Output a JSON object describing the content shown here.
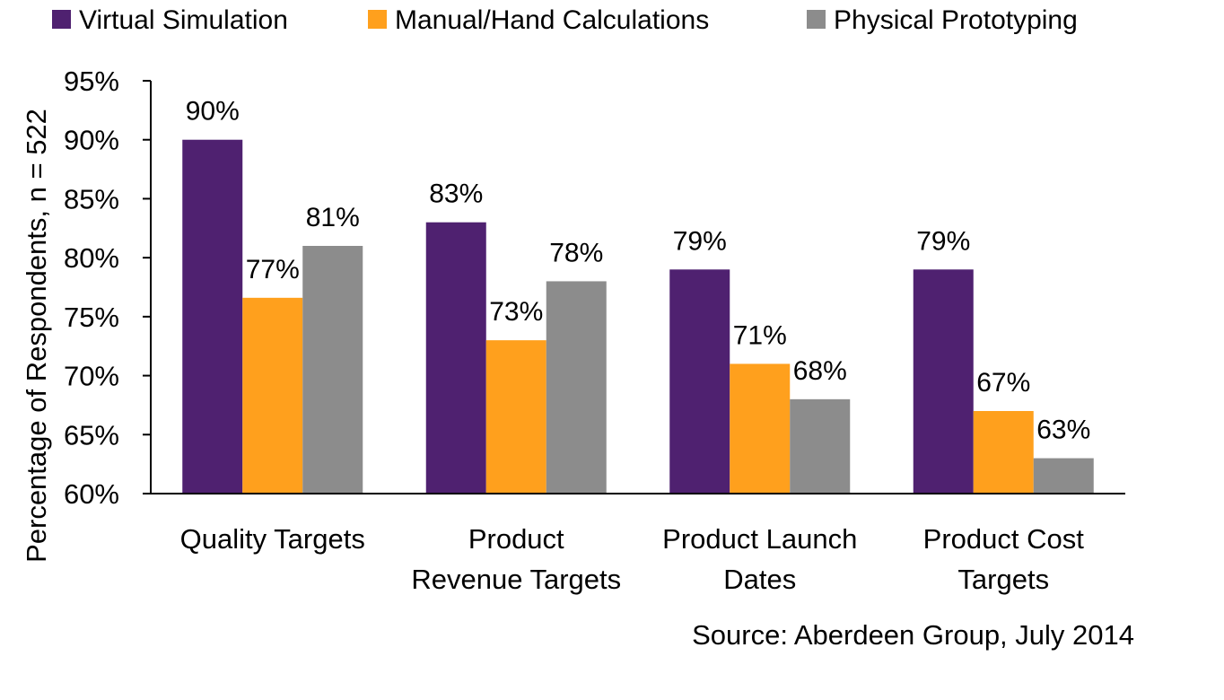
{
  "colors": {
    "virtual": "#4F2170",
    "manual": "#FFA01D",
    "physical": "#8C8C8C",
    "axis": "#000000"
  },
  "source": "Source: Aberdeen Group, July 2014",
  "chart_data": {
    "type": "bar",
    "title": "",
    "xlabel": "",
    "ylabel": "Percentage of Respondents, n = 522",
    "ylim": [
      60,
      95
    ],
    "yticks": [
      60,
      65,
      70,
      75,
      80,
      85,
      90,
      95
    ],
    "ytick_labels": [
      "60%",
      "65%",
      "70%",
      "75%",
      "80%",
      "85%",
      "90%",
      "95%"
    ],
    "grid": false,
    "legend_position": "top",
    "categories": [
      {
        "lines": [
          "Quality Targets"
        ]
      },
      {
        "lines": [
          "Product",
          "Revenue Targets"
        ]
      },
      {
        "lines": [
          "Product Launch",
          "Dates"
        ]
      },
      {
        "lines": [
          "Product Cost",
          "Targets"
        ]
      }
    ],
    "series": [
      {
        "name": "Virtual Simulation",
        "color_key": "virtual",
        "values": [
          90,
          83,
          79,
          79
        ],
        "labels": [
          "90%",
          "83%",
          "79%",
          "79%"
        ]
      },
      {
        "name": "Manual/Hand Calculations",
        "color_key": "manual",
        "values": [
          76.6,
          73,
          71,
          67
        ],
        "labels": [
          "77%",
          "73%",
          "71%",
          "67%"
        ]
      },
      {
        "name": "Physical Prototyping",
        "color_key": "physical",
        "values": [
          81,
          78,
          68,
          63
        ],
        "labels": [
          "81%",
          "78%",
          "68%",
          "63%"
        ]
      }
    ]
  }
}
